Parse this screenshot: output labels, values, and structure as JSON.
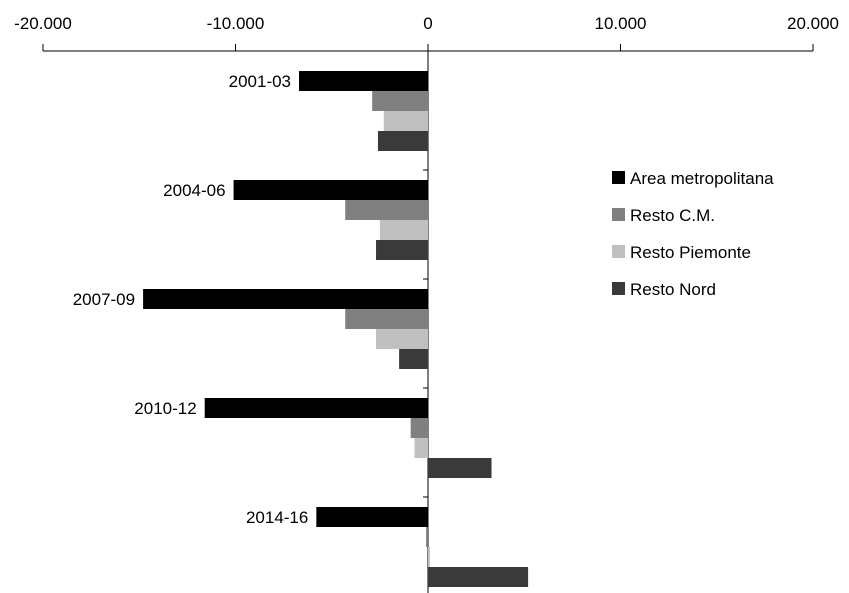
{
  "chart_data": {
    "type": "bar",
    "orientation": "horizontal",
    "x_axis_position": "top",
    "xlim": [
      -20000,
      20000
    ],
    "x_ticks": [
      -20000,
      -10000,
      0,
      10000,
      20000
    ],
    "x_tick_labels": [
      "-20.000",
      "-10.000",
      "0",
      "10.000",
      "20.000"
    ],
    "categories": [
      "2001-03",
      "2004-06",
      "2007-09",
      "2010-12",
      "2014-16"
    ],
    "series": [
      {
        "name": "Area metropolitana",
        "color": "#000000",
        "values": [
          -6700,
          -10100,
          -14800,
          -11600,
          -5800
        ]
      },
      {
        "name": "Resto C.M.",
        "color": "#808080",
        "values": [
          -2900,
          -4300,
          -4300,
          -900,
          -100
        ]
      },
      {
        "name": "Resto Piemonte",
        "color": "#c0c0c0",
        "values": [
          -2300,
          -2500,
          -2700,
          -700,
          100
        ]
      },
      {
        "name": "Resto Nord",
        "color": "#3a3a3a",
        "values": [
          -2600,
          -2700,
          -1500,
          3300,
          5200
        ]
      }
    ],
    "legend_position": "right",
    "grid": false,
    "title": "",
    "xlabel": "",
    "ylabel": ""
  }
}
